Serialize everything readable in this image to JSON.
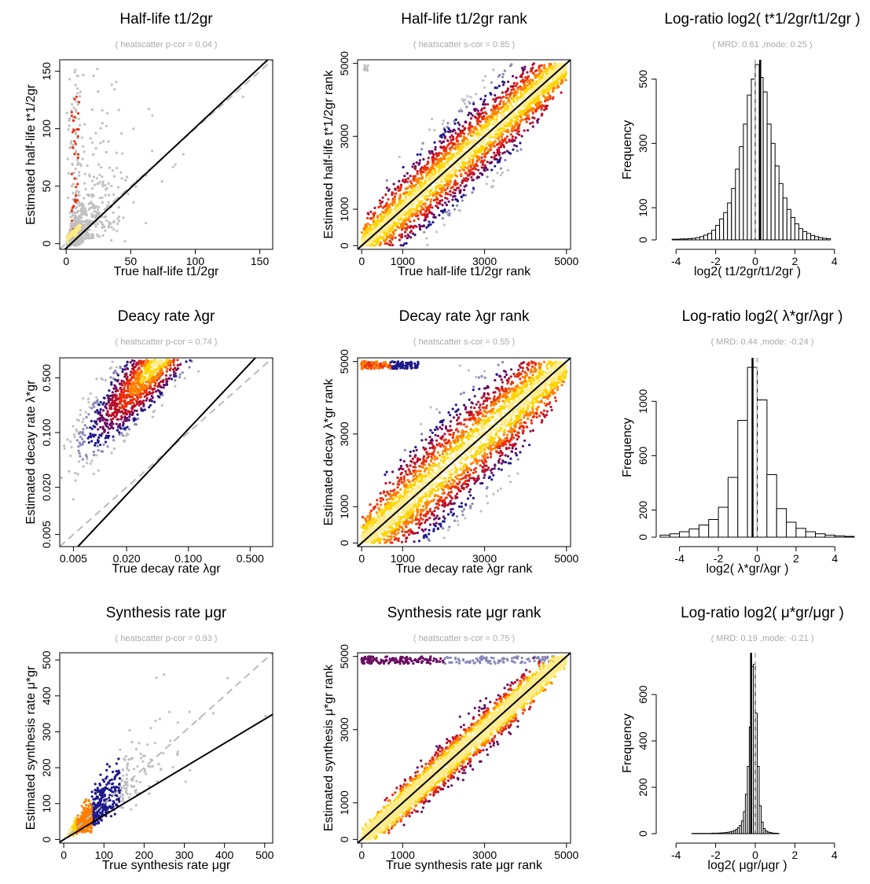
{
  "figure": {
    "diagonal_color": "#bbbbbb",
    "fit_color": "#000000",
    "heat_colors": [
      "#c0c0c0",
      "#8888b8",
      "#1f1a8a",
      "#6a0f63",
      "#b8102a",
      "#e83010",
      "#ff7f00",
      "#ffd400",
      "#ffeb8a"
    ]
  },
  "chart_data": [
    {
      "id": "hl_scatter",
      "type": "scatter",
      "title": "Half-life  t1/2gr",
      "subtitle": "( heatscatter p-cor =  0.04 )",
      "xlabel": "True half-life  t1/2gr",
      "ylabel": "Estimated half-life  t*1/2gr",
      "xlim": [
        -5,
        160
      ],
      "ylim": [
        -5,
        160
      ],
      "log": false,
      "xticks": [
        0,
        50,
        100,
        150
      ],
      "xtick_labels": [
        "0",
        "50",
        "100",
        "150"
      ],
      "yticks": [
        0,
        50,
        100,
        150
      ],
      "ytick_labels": [
        "0",
        "50",
        "100",
        "150"
      ],
      "identity_line": true,
      "fit_line": {
        "intercept": -4,
        "slope": 1.05
      },
      "correlation": 0.04
    },
    {
      "id": "hl_rank",
      "type": "scatter",
      "title": "Half-life  t1/2gr  rank",
      "subtitle": "( heatscatter s-cor =  0.85 )",
      "xlabel": "True half-life  t1/2gr  rank",
      "ylabel": "Estimated half-life  t*1/2gr  rank",
      "xlim": [
        -100,
        5100
      ],
      "ylim": [
        -100,
        5100
      ],
      "log": false,
      "xticks": [
        0,
        1000,
        3000,
        5000
      ],
      "xtick_labels": [
        "0",
        "1000",
        "3000",
        "5000"
      ],
      "yticks": [
        0,
        1000,
        3000,
        5000
      ],
      "ytick_labels": [
        "0",
        "1000",
        "3000",
        "5000"
      ],
      "identity_line": true,
      "fit_line": {
        "intercept": 0,
        "slope": 1.0
      },
      "correlation": 0.85
    },
    {
      "id": "hl_hist",
      "type": "histogram",
      "title": "Log-ratio  log2( t*1/2gr/t1/2gr )",
      "subtitle": "( MRD:  0.61 ,mode:  0.25  )",
      "xlabel": "log2( t1/2gr/t1/2gr )",
      "ylabel": "Frequency",
      "xlim": [
        -5,
        5
      ],
      "ylim": [
        0,
        560
      ],
      "xticks": [
        -4,
        -2,
        0,
        2,
        4
      ],
      "xtick_labels": [
        "-4",
        "-2",
        "0",
        "2",
        "4"
      ],
      "yticks": [
        0,
        100,
        300,
        500
      ],
      "ytick_labels": [
        "0",
        "100",
        "300",
        "500"
      ],
      "bin_start": -4.2,
      "bin_width": 0.2,
      "counts": [
        2,
        2,
        3,
        3,
        4,
        5,
        7,
        10,
        15,
        20,
        30,
        45,
        65,
        85,
        115,
        160,
        220,
        290,
        360,
        450,
        500,
        545,
        505,
        460,
        360,
        300,
        230,
        175,
        130,
        95,
        70,
        50,
        35,
        26,
        20,
        14,
        10,
        7,
        5,
        4
      ],
      "mode": 0.25,
      "vline_dashed": 0.0
    },
    {
      "id": "dr_scatter",
      "type": "scatter",
      "title": "Deacy rate  λgr",
      "subtitle": "( heatscatter p-cor =  0.74 )",
      "xlabel": "True decay rate  λgr",
      "ylabel": "Estimated decay rate  λ*gr",
      "xlim": [
        0.0035,
        0.9
      ],
      "ylim": [
        0.0035,
        0.9
      ],
      "log": true,
      "xticks": [
        0.005,
        0.02,
        0.1,
        0.5
      ],
      "xtick_labels": [
        "0.005",
        "0.020",
        "0.100",
        "0.500"
      ],
      "yticks": [
        0.005,
        0.02,
        0.1,
        0.5
      ],
      "ytick_labels": [
        "0.005",
        "0.020",
        "0.100",
        "0.500"
      ],
      "identity_line": true,
      "fit_line": {
        "intercept": 0,
        "slope": 1.2,
        "pivot": 0.06
      },
      "correlation": 0.74
    },
    {
      "id": "dr_rank",
      "type": "scatter",
      "title": "Decay rate  λgr  rank",
      "subtitle": "( heatscatter s-cor =  0.55 )",
      "xlabel": "True decay rate  λgr  rank",
      "ylabel": "Estimated decay  λ*gr  rank",
      "xlim": [
        -100,
        5100
      ],
      "ylim": [
        -100,
        5100
      ],
      "log": false,
      "xticks": [
        0,
        1000,
        3000,
        5000
      ],
      "xtick_labels": [
        "0",
        "1000",
        "3000",
        "5000"
      ],
      "yticks": [
        0,
        1000,
        3000,
        5000
      ],
      "ytick_labels": [
        "0",
        "1000",
        "3000",
        "5000"
      ],
      "identity_line": true,
      "fit_line": {
        "intercept": 0,
        "slope": 1.0
      },
      "correlation": 0.55
    },
    {
      "id": "dr_hist",
      "type": "histogram",
      "title": "Log-ratio  log2( λ*gr/λgr )",
      "subtitle": "( MRD:  0.44 ,mode:  -0.24  )",
      "xlabel": "log2( λ*gr/λgr )",
      "ylabel": "Frequency",
      "xlim": [
        -5.2,
        5
      ],
      "ylim": [
        0,
        1320
      ],
      "xticks": [
        -4,
        -2,
        0,
        2,
        4
      ],
      "xtick_labels": [
        "-4",
        "-2",
        "0",
        "2",
        "4"
      ],
      "yticks": [
        0,
        200,
        600,
        1000
      ],
      "ytick_labels": [
        "0",
        "200",
        "600",
        "1000"
      ],
      "bin_start": -5,
      "bin_width": 0.5,
      "counts": [
        15,
        25,
        40,
        60,
        90,
        130,
        220,
        440,
        860,
        1250,
        1010,
        460,
        210,
        110,
        65,
        40,
        25,
        15,
        10,
        6
      ],
      "mode": -0.24,
      "vline_dashed": 0.0
    },
    {
      "id": "sr_scatter",
      "type": "scatter",
      "title": "Synthesis rate  μgr",
      "subtitle": "( heatscatter p-cor =  0.93 )",
      "xlabel": "True synthesis rate  μgr",
      "ylabel": "Estimated synthesis rate  μ*gr",
      "xlim": [
        -10,
        520
      ],
      "ylim": [
        -10,
        520
      ],
      "log": false,
      "xticks": [
        0,
        100,
        200,
        300,
        400,
        500
      ],
      "xtick_labels": [
        "0",
        "100",
        "200",
        "300",
        "400",
        "500"
      ],
      "yticks": [
        0,
        100,
        200,
        300,
        400,
        500
      ],
      "ytick_labels": [
        "0",
        "100",
        "200",
        "300",
        "400",
        "500"
      ],
      "identity_line": true,
      "fit_line": {
        "intercept": 0,
        "slope": 0.67
      },
      "correlation": 0.93
    },
    {
      "id": "sr_rank",
      "type": "scatter",
      "title": "Synthesis rate  μgr  rank",
      "subtitle": "( heatscatter s-cor =  0.75 )",
      "xlabel": "True synthesis rate  μgr  rank",
      "ylabel": "Estimated synthesis  μ*gr  rank",
      "xlim": [
        -100,
        5100
      ],
      "ylim": [
        -100,
        5100
      ],
      "log": false,
      "xticks": [
        0,
        1000,
        3000,
        5000
      ],
      "xtick_labels": [
        "0",
        "1000",
        "3000",
        "5000"
      ],
      "yticks": [
        0,
        1000,
        3000,
        5000
      ],
      "ytick_labels": [
        "0",
        "1000",
        "3000",
        "5000"
      ],
      "identity_line": true,
      "fit_line": {
        "intercept": 0,
        "slope": 1.0
      },
      "correlation": 0.75
    },
    {
      "id": "sr_hist",
      "type": "histogram",
      "title": "Log-ratio  log2( μ*gr/μgr )",
      "subtitle": "( MRD:  0.19 ,mode:  -0.21  )",
      "xlabel": "log2( μgr/μgr )",
      "ylabel": "Frequency",
      "xlim": [
        -5,
        5
      ],
      "ylim": [
        0,
        780
      ],
      "xticks": [
        -4,
        -2,
        0,
        2,
        4
      ],
      "xtick_labels": [
        "-4",
        "-2",
        "0",
        "2",
        "4"
      ],
      "yticks": [
        0,
        200,
        400,
        600
      ],
      "ytick_labels": [
        "0",
        "200",
        "400",
        "600"
      ],
      "bin_start": -3.2,
      "bin_width": 0.1,
      "counts": [
        1,
        1,
        1,
        1,
        1,
        1,
        1,
        1,
        1,
        1,
        2,
        2,
        2,
        2,
        3,
        3,
        4,
        5,
        6,
        8,
        10,
        13,
        18,
        25,
        35,
        55,
        95,
        170,
        290,
        460,
        720,
        730,
        520,
        290,
        120,
        50,
        22,
        12,
        7,
        5,
        3,
        2,
        2,
        1
      ],
      "mode": -0.21,
      "vline_dashed": 0.0
    }
  ]
}
